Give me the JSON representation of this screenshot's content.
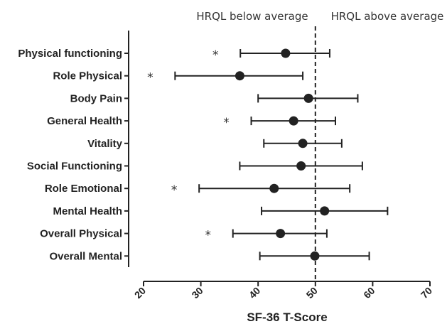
{
  "chart_data": {
    "type": "scatter",
    "xlabel": "SF-36 T-Score",
    "xlim": [
      20,
      70
    ],
    "xticks": [
      "20",
      "30",
      "40",
      "50",
      "60",
      "70"
    ],
    "reference_line": {
      "x": 50,
      "style": "dashed"
    },
    "annotations": {
      "below": "HRQL below average",
      "above": "HRQL above average"
    },
    "significance_marker": "*",
    "categories": [
      "Physical functioning",
      "Role Physical",
      "Body Pain",
      "General Health",
      "Vitality",
      "Social Functioning",
      "Role Emotional",
      "Mental Health",
      "Overall Physical",
      "Overall Mental"
    ],
    "mean": [
      44.8,
      36.8,
      48.8,
      46.2,
      47.8,
      47.5,
      42.8,
      51.6,
      43.9,
      49.9
    ],
    "lower": [
      36.9,
      25.5,
      40.0,
      38.8,
      41.0,
      36.8,
      29.7,
      40.6,
      35.6,
      40.3
    ],
    "upper": [
      52.5,
      47.8,
      57.4,
      53.5,
      54.6,
      58.2,
      56.0,
      62.6,
      52.0,
      59.4
    ],
    "significant": [
      true,
      true,
      false,
      true,
      false,
      false,
      true,
      false,
      true,
      false
    ],
    "colors": {
      "marker": "#222222",
      "axis": "#222222",
      "text": "#222222"
    }
  }
}
